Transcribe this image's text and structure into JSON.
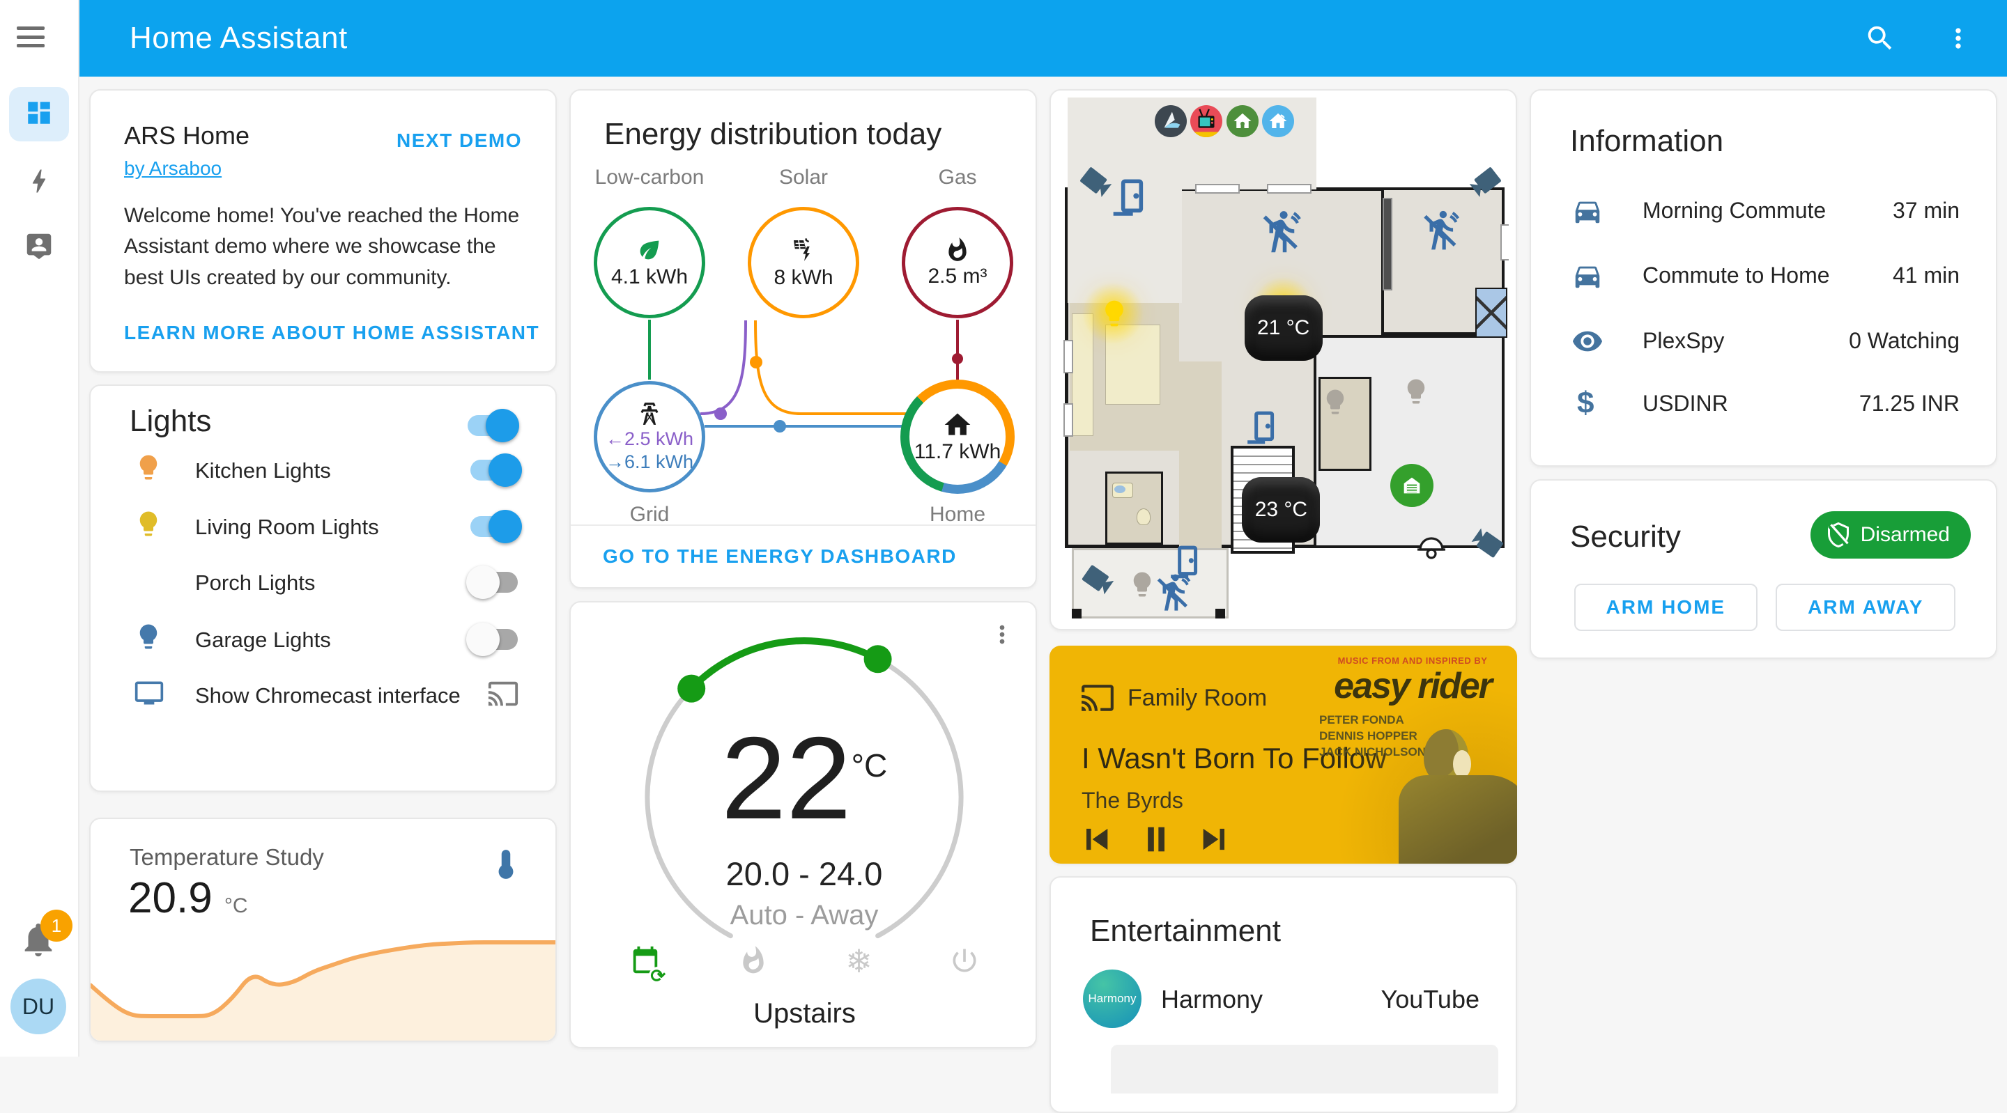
{
  "header": {
    "title": "Home Assistant"
  },
  "sidebar": {
    "notification_count": "1",
    "user_initials": "DU"
  },
  "intro_card": {
    "title": "ARS Home",
    "author": "by Arsaboo",
    "next_demo": "NEXT DEMO",
    "body": "Welcome home! You've reached the Home Assistant demo where we showcase the best UIs created by our community.",
    "learn_more": "LEARN MORE ABOUT HOME ASSISTANT"
  },
  "lights_card": {
    "title": "Lights",
    "master_on": true,
    "rows": [
      {
        "label": "Kitchen Lights",
        "on": true
      },
      {
        "label": "Living Room Lights",
        "on": true
      },
      {
        "label": "Porch Lights",
        "on": false
      },
      {
        "label": "Garage Lights",
        "on": false
      },
      {
        "label": "Show Chromecast interface",
        "on": false
      }
    ]
  },
  "temperature_card": {
    "title": "Temperature Study",
    "value": "20.9",
    "unit": "°C"
  },
  "energy_card": {
    "title": "Energy distribution today",
    "low_carbon_label": "Low-carbon",
    "low_carbon_value": "4.1 kWh",
    "solar_label": "Solar",
    "solar_value": "8 kWh",
    "gas_label": "Gas",
    "gas_value": "2.5 m³",
    "grid_label": "Grid",
    "grid_to": "←2.5 kWh",
    "grid_from": "→6.1 kWh",
    "home_label": "Home",
    "home_value": "11.7 kWh",
    "link": "GO TO THE ENERGY DASHBOARD"
  },
  "thermostat_card": {
    "value": "22",
    "unit": "°C",
    "range": "20.0 - 24.0",
    "mode": "Auto - Away",
    "name": "Upstairs"
  },
  "floorplan_card": {
    "thermostat_living": "21 °C",
    "thermostat_lower": "23 °C"
  },
  "media_card": {
    "source": "Family Room",
    "track": "I Wasn't Born To Follow",
    "artist": "The Byrds",
    "art_tagline": "MUSIC FROM AND INSPIRED BY",
    "art_title": "easy rider",
    "art_cast_1": "PETER FONDA",
    "art_cast_2": "DENNIS HOPPER",
    "art_cast_3": "JACK NICHOLSON"
  },
  "entertainment_card": {
    "title": "Entertainment",
    "row": {
      "avatar": "Harmony",
      "name": "Harmony",
      "value": "YouTube"
    }
  },
  "information_card": {
    "title": "Information",
    "rows": [
      {
        "icon": "car",
        "label": "Morning Commute",
        "value": "37 min"
      },
      {
        "icon": "car",
        "label": "Commute to Home",
        "value": "41 min"
      },
      {
        "icon": "eye",
        "label": "PlexSpy",
        "value": "0 Watching"
      },
      {
        "icon": "dollar",
        "label": "USDINR",
        "value": "71.25 INR"
      }
    ]
  },
  "security_card": {
    "title": "Security",
    "status": "Disarmed",
    "arm_home": "ARM HOME",
    "arm_away": "ARM AWAY"
  },
  "colors": {
    "header": "#0ca3ee",
    "accent": "#18a0ef",
    "energy_green": "#149c50",
    "energy_orange": "#ff9800",
    "energy_gas": "#9e1b32",
    "energy_grid": "#4a8fc9",
    "energy_purple": "#8a5fc9",
    "thermostat_green": "#159b15",
    "security_green": "#189e38",
    "icon_blue": "#44739e",
    "media_amber": "#f0b505"
  },
  "chart_data": [
    {
      "type": "area",
      "title": "Temperature Study",
      "ylabel": "°C",
      "current_value": 20.9,
      "values": [
        20.3,
        19.9,
        19.63,
        19.62,
        19.62,
        19.62,
        19.63,
        20.0,
        20.58,
        20.29,
        20.35,
        20.6,
        20.75,
        20.9,
        21.0,
        21.08,
        21.15,
        21.2,
        21.22,
        21.24,
        21.24,
        21.24,
        21.24,
        21.24
      ],
      "ylim": [
        19.3,
        21.5
      ],
      "grid": false,
      "legend": false
    },
    {
      "type": "energy-flow",
      "title": "Energy distribution today",
      "nodes": [
        {
          "label": "Low-carbon",
          "value": "4.1 kWh"
        },
        {
          "label": "Solar",
          "value": "8 kWh"
        },
        {
          "label": "Gas",
          "value": "2.5 m³"
        },
        {
          "label": "Grid",
          "returned_to_grid": "2.5 kWh",
          "consumed_from_grid": "6.1 kWh"
        },
        {
          "label": "Home",
          "value": "11.7 kWh"
        }
      ]
    }
  ]
}
